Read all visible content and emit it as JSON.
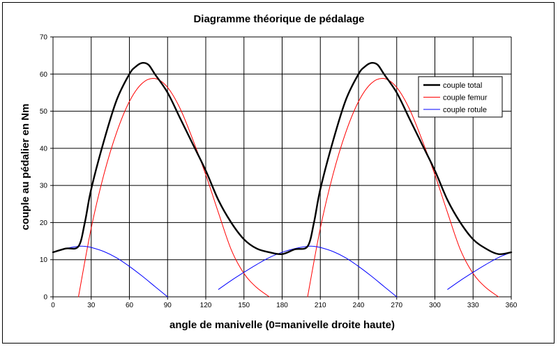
{
  "chart_data": {
    "type": "line",
    "title": "Diagramme théorique de pédalage",
    "xlabel": "angle de manivelle (0=manivelle droite haute)",
    "ylabel": "couple au pédalier en Nm",
    "xlim": [
      0,
      360
    ],
    "ylim": [
      0,
      70
    ],
    "xticks": [
      0,
      30,
      60,
      90,
      120,
      150,
      180,
      210,
      240,
      270,
      300,
      330,
      360
    ],
    "yticks": [
      0,
      10,
      20,
      30,
      40,
      50,
      60,
      70
    ],
    "grid": true,
    "legend_position": "right",
    "series": [
      {
        "name": "couple total",
        "color": "#000000",
        "width": 2.4,
        "x": [
          0,
          10,
          20,
          25,
          30,
          40,
          50,
          60,
          65,
          70,
          75,
          80,
          90,
          100,
          110,
          120,
          130,
          140,
          150,
          160,
          170,
          180,
          190,
          200,
          205,
          210,
          220,
          230,
          240,
          245,
          250,
          255,
          260,
          270,
          280,
          290,
          300,
          310,
          320,
          330,
          340,
          350,
          360
        ],
        "y": [
          12,
          13,
          13.6,
          20,
          29,
          42,
          53,
          60,
          62,
          63,
          62.5,
          60,
          55,
          48,
          41,
          34,
          26,
          20,
          15.5,
          13,
          12,
          11.5,
          12.8,
          13.6,
          20,
          29,
          42,
          53,
          60,
          62,
          63,
          62.5,
          60,
          55,
          48,
          41,
          34,
          26,
          20,
          15.5,
          13,
          11.5,
          12
        ]
      },
      {
        "name": "couple femur",
        "color": "#ff0000",
        "width": 1,
        "x": [
          0,
          10,
          20,
          30,
          40,
          50,
          60,
          70,
          80,
          90,
          100,
          110,
          120,
          130,
          140,
          150,
          160,
          170,
          180,
          190,
          200,
          210,
          220,
          230,
          240,
          250,
          260,
          270,
          280,
          290,
          300,
          310,
          320,
          330,
          340,
          350,
          360
        ],
        "y": [
          null,
          null,
          0,
          18.5,
          33,
          44.3,
          52.6,
          57.5,
          58.8,
          56.4,
          50.6,
          42.2,
          32.9,
          22.6,
          12.7,
          6.3,
          2.5,
          0,
          null,
          null,
          0,
          18.5,
          33,
          44.3,
          52.6,
          57.5,
          58.8,
          56.4,
          50.6,
          42.2,
          32.9,
          22.6,
          12.7,
          6.3,
          2.5,
          0,
          null
        ]
      },
      {
        "name": "couple rotule",
        "color": "#0000ff",
        "width": 1,
        "x": [
          0,
          10,
          20,
          25,
          30,
          40,
          50,
          60,
          70,
          80,
          90,
          95,
          120,
          130,
          140,
          150,
          160,
          170,
          180,
          190,
          200,
          205,
          210,
          220,
          230,
          240,
          250,
          260,
          270,
          275,
          300,
          310,
          320,
          330,
          340,
          350,
          360
        ],
        "y": [
          12,
          13,
          13.6,
          13.6,
          13.3,
          12.2,
          10.5,
          8.2,
          5.6,
          2.8,
          0,
          null,
          null,
          2,
          4.4,
          6.6,
          8.7,
          10.6,
          12,
          13,
          13.6,
          13.6,
          13.3,
          12.2,
          10.5,
          8.2,
          5.6,
          2.8,
          0,
          null,
          null,
          2,
          4.4,
          6.6,
          8.7,
          10.6,
          12
        ]
      }
    ]
  }
}
